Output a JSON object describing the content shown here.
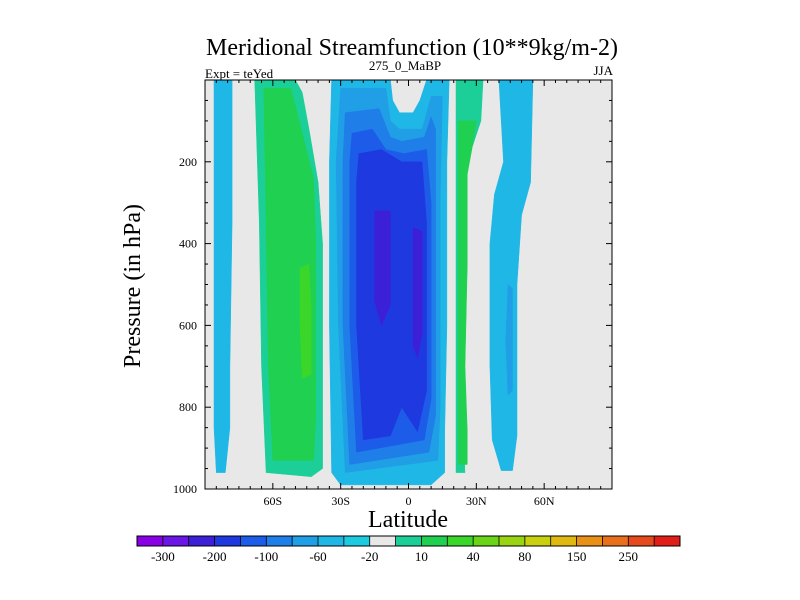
{
  "chart_data": {
    "type": "contour",
    "title": "Meridional Streamfunction (10**9kg/m-2)",
    "left_label": "Expt = teYed",
    "center_label": "275_0_MaBP",
    "right_label": "JJA",
    "xlabel": "Latitude",
    "ylabel": "Pressure (in hPa)",
    "x_range": [
      -90,
      90
    ],
    "y_range": [
      0,
      1000
    ],
    "y_reversed": true,
    "x_ticks": [
      {
        "value": -60,
        "label": "60S"
      },
      {
        "value": -30,
        "label": "30S"
      },
      {
        "value": 0,
        "label": "0"
      },
      {
        "value": 30,
        "label": "30N"
      },
      {
        "value": 60,
        "label": "60N"
      }
    ],
    "y_ticks": [
      {
        "value": 200,
        "label": "200"
      },
      {
        "value": 400,
        "label": "400"
      },
      {
        "value": 600,
        "label": "600"
      },
      {
        "value": 800,
        "label": "800"
      },
      {
        "value": 1000,
        "label": "1000"
      }
    ],
    "colorbar": {
      "labels": [
        "-300",
        "-200",
        "-100",
        "-60",
        "-20",
        "10",
        "40",
        "80",
        "150",
        "250"
      ],
      "colors": [
        "#8a00e6",
        "#6a16e6",
        "#3c20d8",
        "#1f39e0",
        "#1d5ce8",
        "#1f7ee8",
        "#209fe6",
        "#1fb8e6",
        "#1dcbe0",
        "#e8e8e8",
        "#1ccf98",
        "#20d050",
        "#3bd62a",
        "#6ad418",
        "#98d412",
        "#c8d010",
        "#e0b812",
        "#e89018",
        "#e8701c",
        "#e64a1c",
        "#e02018"
      ]
    },
    "levels": {
      "n20": {
        "value": -20,
        "color": "#1fb8e6"
      },
      "n40": {
        "value": -40,
        "color": "#209fe6"
      },
      "n60": {
        "value": -60,
        "color": "#1f7ee8"
      },
      "n80": {
        "value": -80,
        "color": "#1d5ce8"
      },
      "n100": {
        "value": -100,
        "color": "#1f39e0"
      },
      "n150": {
        "value": -150,
        "color": "#3c20d8"
      },
      "p10": {
        "value": 10,
        "color": "#1ccf98"
      },
      "p20": {
        "value": 20,
        "color": "#20d050"
      },
      "p40": {
        "value": 40,
        "color": "#3bd62a"
      },
      "p60": {
        "value": 60,
        "color": "#6ad418"
      },
      "neutral": {
        "value": 0,
        "color": "#e8e8e8"
      }
    },
    "regions": [
      {
        "level": "n20",
        "pts": [
          [
            -86,
            0
          ],
          [
            -78,
            0
          ],
          [
            -78,
            350
          ],
          [
            -79,
            700
          ],
          [
            -79,
            850
          ],
          [
            -81,
            960
          ],
          [
            -85,
            960
          ],
          [
            -86,
            850
          ]
        ]
      },
      {
        "level": "p10",
        "pts": [
          [
            -68,
            0
          ],
          [
            -50,
            0
          ],
          [
            -47,
            30
          ],
          [
            -44,
            120
          ],
          [
            -40,
            250
          ],
          [
            -38,
            400
          ],
          [
            -38,
            600
          ],
          [
            -38,
            800
          ],
          [
            -38,
            950
          ],
          [
            -43,
            970
          ],
          [
            -63,
            960
          ],
          [
            -65,
            700
          ],
          [
            -66,
            350
          ]
        ]
      },
      {
        "level": "p20",
        "pts": [
          [
            -64,
            20
          ],
          [
            -52,
            20
          ],
          [
            -47,
            130
          ],
          [
            -42,
            240
          ],
          [
            -41,
            400
          ],
          [
            -41,
            600
          ],
          [
            -41,
            820
          ],
          [
            -42,
            930
          ],
          [
            -60,
            930
          ],
          [
            -62,
            700
          ],
          [
            -63,
            350
          ]
        ]
      },
      {
        "level": "p40",
        "pts": [
          [
            -48,
            460
          ],
          [
            -44,
            450
          ],
          [
            -43,
            560
          ],
          [
            -43,
            720
          ],
          [
            -47,
            730
          ],
          [
            -48,
            600
          ]
        ]
      },
      {
        "level": "n20",
        "pts": [
          [
            -34,
            0
          ],
          [
            -8,
            0
          ],
          [
            -7,
            50
          ],
          [
            -4,
            80
          ],
          [
            2,
            80
          ],
          [
            5,
            50
          ],
          [
            8,
            0
          ],
          [
            18,
            0
          ],
          [
            17,
            200
          ],
          [
            17,
            600
          ],
          [
            16,
            860
          ],
          [
            16,
            960
          ],
          [
            10,
            990
          ],
          [
            -30,
            990
          ],
          [
            -34,
            960
          ],
          [
            -35,
            600
          ],
          [
            -35,
            200
          ]
        ]
      },
      {
        "level": "n40",
        "pts": [
          [
            -30,
            20
          ],
          [
            -10,
            20
          ],
          [
            -8,
            100
          ],
          [
            -4,
            120
          ],
          [
            6,
            120
          ],
          [
            10,
            40
          ],
          [
            15,
            40
          ],
          [
            14,
            300
          ],
          [
            14,
            800
          ],
          [
            13,
            930
          ],
          [
            -28,
            960
          ],
          [
            -31,
            600
          ],
          [
            -32,
            200
          ]
        ]
      },
      {
        "level": "n60",
        "pts": [
          [
            -28,
            80
          ],
          [
            -13,
            70
          ],
          [
            -8,
            140
          ],
          [
            -3,
            150
          ],
          [
            7,
            140
          ],
          [
            10,
            90
          ],
          [
            12,
            120
          ],
          [
            12,
            820
          ],
          [
            9,
            910
          ],
          [
            -26,
            940
          ],
          [
            -29,
            600
          ],
          [
            -29,
            200
          ]
        ]
      },
      {
        "level": "n80",
        "pts": [
          [
            -25,
            130
          ],
          [
            -16,
            120
          ],
          [
            -10,
            170
          ],
          [
            -2,
            180
          ],
          [
            8,
            170
          ],
          [
            10,
            300
          ],
          [
            10,
            780
          ],
          [
            7,
            880
          ],
          [
            -23,
            910
          ],
          [
            -26,
            600
          ],
          [
            -26,
            200
          ]
        ]
      },
      {
        "level": "n100",
        "pts": [
          [
            -22,
            180
          ],
          [
            -12,
            170
          ],
          [
            -3,
            200
          ],
          [
            6,
            200
          ],
          [
            8,
            350
          ],
          [
            8,
            760
          ],
          [
            4,
            860
          ],
          [
            -3,
            800
          ],
          [
            -8,
            870
          ],
          [
            -20,
            880
          ],
          [
            -23,
            600
          ],
          [
            -23,
            250
          ]
        ]
      },
      {
        "level": "n150",
        "pts": [
          [
            -15,
            320
          ],
          [
            -8,
            320
          ],
          [
            -8,
            550
          ],
          [
            -12,
            600
          ],
          [
            -15,
            540
          ]
        ]
      },
      {
        "level": "n150",
        "pts": [
          [
            2,
            360
          ],
          [
            6,
            370
          ],
          [
            6,
            620
          ],
          [
            4,
            680
          ],
          [
            2,
            650
          ]
        ]
      },
      {
        "level": "p10",
        "pts": [
          [
            21,
            0
          ],
          [
            33,
            0
          ],
          [
            32,
            100
          ],
          [
            26,
            200
          ],
          [
            24,
            350
          ],
          [
            24,
            600
          ],
          [
            24,
            850
          ],
          [
            25,
            960
          ],
          [
            21,
            960
          ]
        ]
      },
      {
        "level": "p20",
        "pts": [
          [
            22,
            100
          ],
          [
            30,
            100
          ],
          [
            28,
            170
          ],
          [
            26,
            230
          ],
          [
            26,
            450
          ],
          [
            25,
            700
          ],
          [
            26,
            860
          ],
          [
            26,
            940
          ],
          [
            22,
            940
          ],
          [
            22,
            700
          ],
          [
            22,
            300
          ]
        ]
      },
      {
        "level": "n20",
        "pts": [
          [
            40,
            0
          ],
          [
            55,
            0
          ],
          [
            54,
            250
          ],
          [
            50,
            330
          ],
          [
            48,
            500
          ],
          [
            48,
            700
          ],
          [
            48,
            870
          ],
          [
            46,
            955
          ],
          [
            41,
            955
          ],
          [
            37,
            880
          ],
          [
            36,
            700
          ],
          [
            36,
            400
          ],
          [
            38,
            280
          ],
          [
            42,
            200
          ],
          [
            41,
            100
          ]
        ]
      },
      {
        "level": "n40",
        "pts": [
          [
            44,
            500
          ],
          [
            46,
            510
          ],
          [
            46,
            760
          ],
          [
            44,
            770
          ],
          [
            43,
            640
          ]
        ]
      }
    ]
  }
}
